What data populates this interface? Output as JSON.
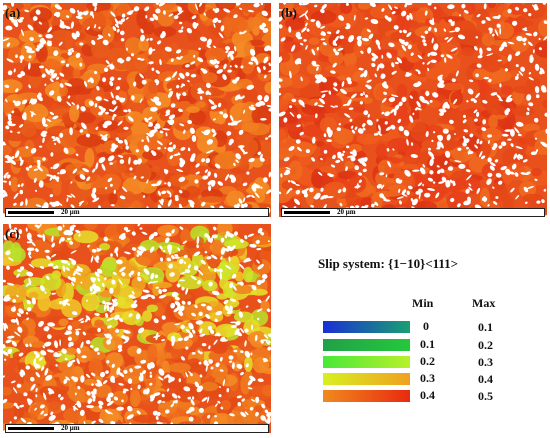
{
  "panels": [
    {
      "label": "(a)",
      "scale": "20 μm"
    },
    {
      "label": "(b)",
      "scale": "20 μm"
    },
    {
      "label": "(c)",
      "scale": "20 μm"
    }
  ],
  "legend": {
    "title": "Slip system: {1−10}<111>",
    "min_header": "Min",
    "max_header": "Max",
    "rows": [
      {
        "min": "0",
        "max": "0.1",
        "gradient": [
          "#1a2fd6",
          "#1aa070"
        ]
      },
      {
        "min": "0.1",
        "max": "0.2",
        "gradient": [
          "#22a048",
          "#25c83c"
        ]
      },
      {
        "min": "0.2",
        "max": "0.3",
        "gradient": [
          "#48e83a",
          "#b8f02a"
        ]
      },
      {
        "min": "0.3",
        "max": "0.4",
        "gradient": [
          "#d8f020",
          "#f0a020"
        ]
      },
      {
        "min": "0.4",
        "max": "0.5",
        "gradient": [
          "#f08a1e",
          "#e82a10"
        ]
      }
    ]
  }
}
